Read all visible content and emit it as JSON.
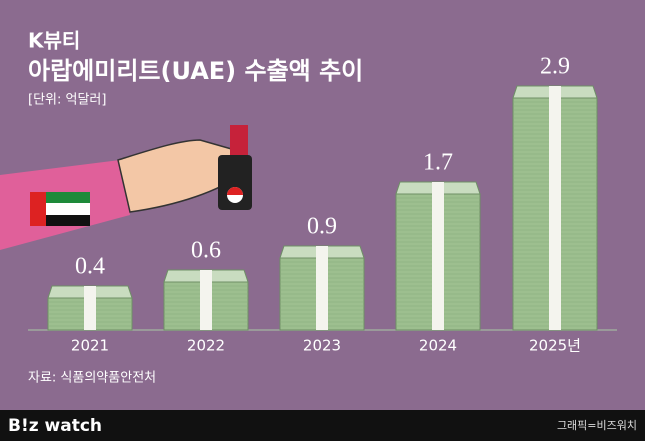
{
  "chart_data": {
    "type": "bar",
    "title": "K뷰티",
    "subtitle": "아랍에미리트(UAE) 수출액 추이",
    "unit": "[단위: 억달러]",
    "categories": [
      "2021",
      "2022",
      "2023",
      "2024",
      "2025년"
    ],
    "values": [
      0.4,
      0.6,
      0.9,
      1.7,
      2.9
    ],
    "color": "#9dbf8f",
    "source": "자료: 식품의약품안전처",
    "logo": "B!z watch",
    "credit": "그래픽=비즈워치"
  }
}
